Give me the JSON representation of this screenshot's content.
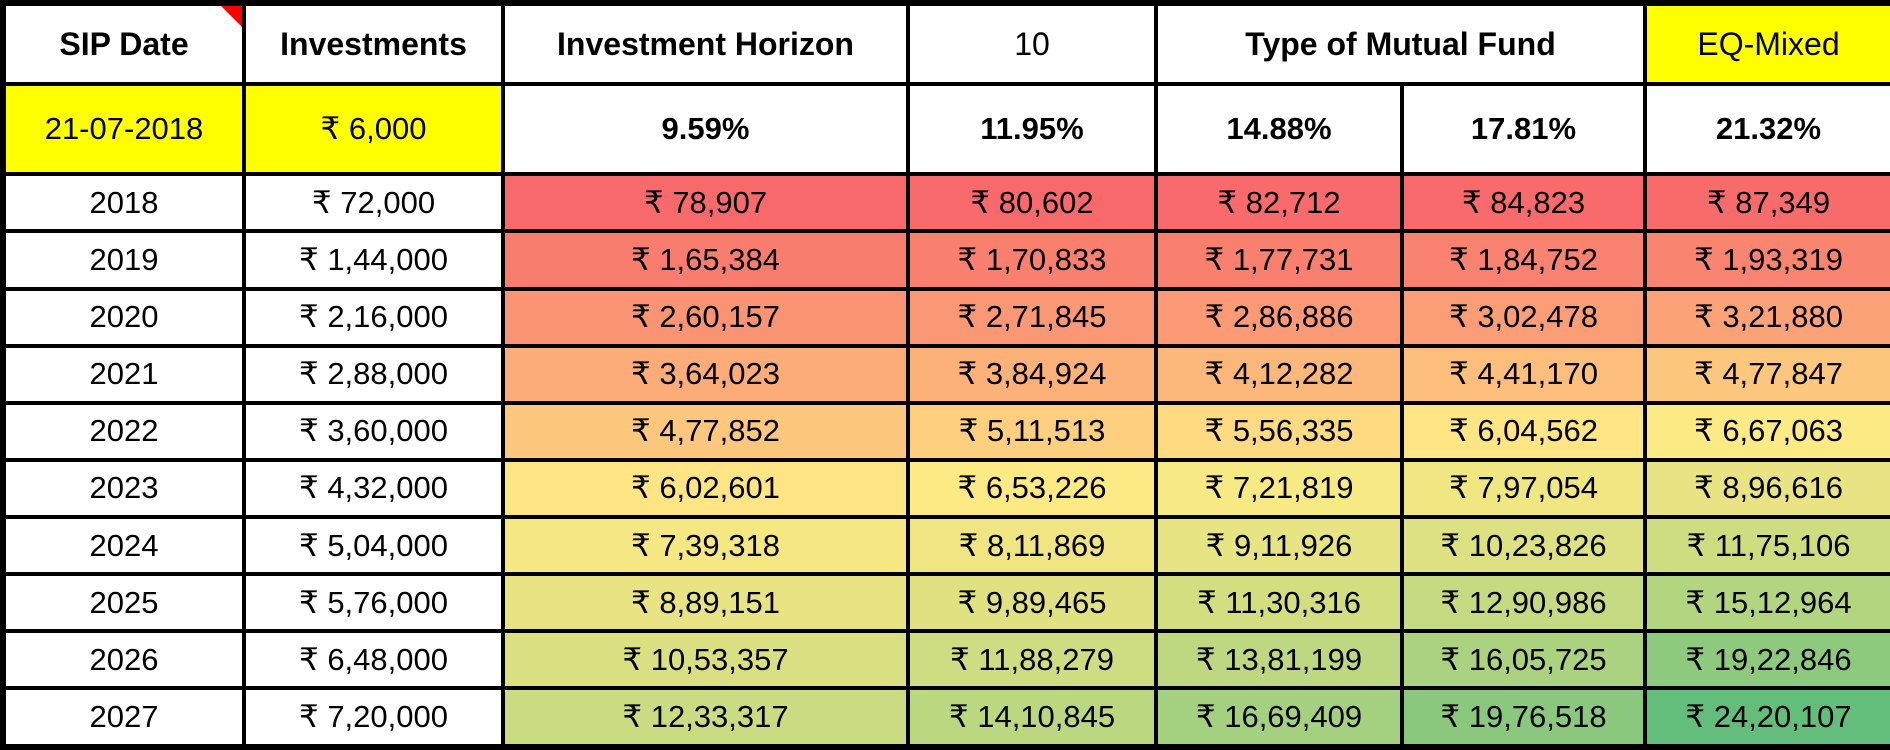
{
  "table": {
    "header": {
      "sip_date": "SIP Date",
      "investments": "Investments",
      "investment_horizon": "Investment Horizon",
      "horizon_years": "10",
      "type_of_mutual_fund": "Type of Mutual Fund",
      "fund_type": "EQ-Mixed"
    },
    "sip_row": {
      "date": "21-07-2018",
      "amount": "₹ 6,000"
    },
    "rates": [
      "9.59%",
      "11.95%",
      "14.88%",
      "17.81%",
      "21.32%"
    ],
    "rows": [
      {
        "year": "2018",
        "invested": "₹ 72,000",
        "values": [
          "₹ 78,907",
          "₹ 80,602",
          "₹ 82,712",
          "₹ 84,823",
          "₹ 87,349"
        ]
      },
      {
        "year": "2019",
        "invested": "₹ 1,44,000",
        "values": [
          "₹ 1,65,384",
          "₹ 1,70,833",
          "₹ 1,77,731",
          "₹ 1,84,752",
          "₹ 1,93,319"
        ]
      },
      {
        "year": "2020",
        "invested": "₹ 2,16,000",
        "values": [
          "₹ 2,60,157",
          "₹ 2,71,845",
          "₹ 2,86,886",
          "₹ 3,02,478",
          "₹ 3,21,880"
        ]
      },
      {
        "year": "2021",
        "invested": "₹ 2,88,000",
        "values": [
          "₹ 3,64,023",
          "₹ 3,84,924",
          "₹ 4,12,282",
          "₹ 4,41,170",
          "₹ 4,77,847"
        ]
      },
      {
        "year": "2022",
        "invested": "₹ 3,60,000",
        "values": [
          "₹ 4,77,852",
          "₹ 5,11,513",
          "₹ 5,56,335",
          "₹ 6,04,562",
          "₹ 6,67,063"
        ]
      },
      {
        "year": "2023",
        "invested": "₹ 4,32,000",
        "values": [
          "₹ 6,02,601",
          "₹ 6,53,226",
          "₹ 7,21,819",
          "₹ 7,97,054",
          "₹ 8,96,616"
        ]
      },
      {
        "year": "2024",
        "invested": "₹ 5,04,000",
        "values": [
          "₹ 7,39,318",
          "₹ 8,11,869",
          "₹ 9,11,926",
          "₹ 10,23,826",
          "₹ 11,75,106"
        ]
      },
      {
        "year": "2025",
        "invested": "₹ 5,76,000",
        "values": [
          "₹ 8,89,151",
          "₹ 9,89,465",
          "₹ 11,30,316",
          "₹ 12,90,986",
          "₹ 15,12,964"
        ]
      },
      {
        "year": "2026",
        "invested": "₹ 6,48,000",
        "values": [
          "₹ 10,53,357",
          "₹ 11,88,279",
          "₹ 13,81,199",
          "₹ 16,05,725",
          "₹ 19,22,846"
        ]
      },
      {
        "year": "2027",
        "invested": "₹ 7,20,000",
        "values": [
          "₹ 12,33,317",
          "₹ 14,10,845",
          "₹ 16,69,409",
          "₹ 19,76,518",
          "₹ 24,20,107"
        ]
      }
    ]
  },
  "colors": {
    "highlight_yellow": "#FFFF00",
    "scale_min_red": "#F8696B",
    "scale_mid_yellow": "#FFEB84",
    "scale_max_green": "#63BE7B",
    "comment_marker_red": "#FF0000",
    "grid_border_black": "#000000"
  }
}
